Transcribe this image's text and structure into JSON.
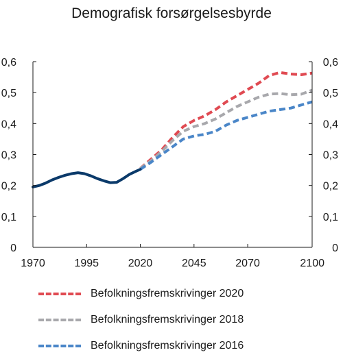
{
  "chart_data": {
    "type": "line",
    "title": "Demografisk forsørgelsesbyrde",
    "xlabel": "",
    "ylabel": "",
    "xlim": [
      1970,
      2100
    ],
    "ylim": [
      0,
      0.6
    ],
    "xticks": [
      1970,
      1995,
      2020,
      2045,
      2070,
      2100
    ],
    "xtick_labels": [
      "1970",
      "1995",
      "2020",
      "2045",
      "2070",
      "2100"
    ],
    "yticks": [
      0,
      0.1,
      0.2,
      0.3,
      0.4,
      0.5,
      0.6
    ],
    "ytick_labels": [
      "0",
      "0,1",
      "0,2",
      "0,3",
      "0,4",
      "0,5",
      "0,6"
    ],
    "grid": false,
    "legend_position": "bottom",
    "historical": {
      "color": "#0b3a6a",
      "style": "solid",
      "x": [
        1970,
        1973,
        1976,
        1979,
        1982,
        1985,
        1988,
        1991,
        1994,
        1997,
        2000,
        2003,
        2006,
        2009,
        2012,
        2015,
        2018,
        2020
      ],
      "y": [
        0.195,
        0.2,
        0.208,
        0.218,
        0.226,
        0.233,
        0.238,
        0.241,
        0.238,
        0.231,
        0.222,
        0.215,
        0.209,
        0.21,
        0.222,
        0.236,
        0.246,
        0.252
      ]
    },
    "series": [
      {
        "name": "Befolkningsfremskrivinger 2020",
        "color": "#e04a52",
        "style": "dashed",
        "x": [
          2020,
          2025,
          2030,
          2035,
          2040,
          2045,
          2050,
          2055,
          2060,
          2065,
          2070,
          2075,
          2080,
          2085,
          2090,
          2095,
          2100
        ],
        "y": [
          0.255,
          0.285,
          0.315,
          0.355,
          0.39,
          0.41,
          0.425,
          0.445,
          0.47,
          0.49,
          0.51,
          0.53,
          0.555,
          0.565,
          0.56,
          0.558,
          0.563
        ]
      },
      {
        "name": "Befolkningsfremskrivinger 2018",
        "color": "#a8a8ac",
        "style": "dashed",
        "x": [
          2020,
          2025,
          2030,
          2035,
          2040,
          2045,
          2050,
          2055,
          2060,
          2065,
          2070,
          2075,
          2080,
          2085,
          2090,
          2095,
          2100
        ],
        "y": [
          0.255,
          0.28,
          0.31,
          0.345,
          0.375,
          0.39,
          0.4,
          0.415,
          0.435,
          0.455,
          0.47,
          0.485,
          0.495,
          0.497,
          0.493,
          0.495,
          0.508
        ]
      },
      {
        "name": "Befolkningsfremskrivinger 2016",
        "color": "#4a86c8",
        "style": "dashed",
        "x": [
          2020,
          2025,
          2030,
          2035,
          2040,
          2045,
          2050,
          2055,
          2060,
          2065,
          2070,
          2075,
          2080,
          2085,
          2090,
          2095,
          2100
        ],
        "y": [
          0.252,
          0.275,
          0.3,
          0.325,
          0.35,
          0.36,
          0.365,
          0.375,
          0.395,
          0.41,
          0.42,
          0.43,
          0.44,
          0.445,
          0.45,
          0.46,
          0.47
        ]
      }
    ]
  }
}
